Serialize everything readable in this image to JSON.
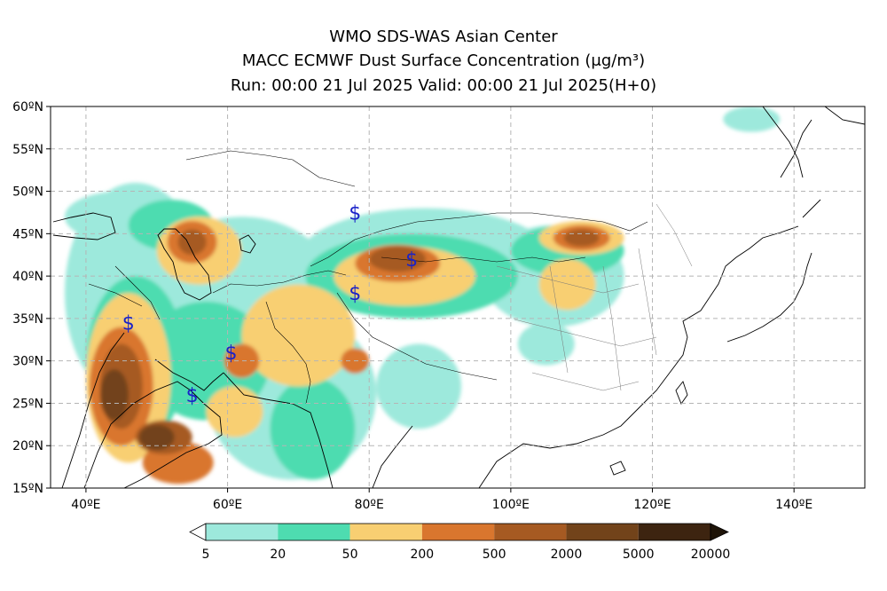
{
  "header": {
    "line1": "WMO SDS-WAS Asian Center",
    "line2": "MACC ECMWF Dust Surface Concentration (μg/m³)",
    "line3": "Run: 00:00 21 Jul 2025    Valid: 00:00 21 Jul 2025(H+0)"
  },
  "map": {
    "lon_range": [
      35,
      150
    ],
    "lat_range": [
      15,
      60
    ],
    "lon_ticks": [
      {
        "value": 40,
        "label": "40ºE"
      },
      {
        "value": 60,
        "label": "60ºE"
      },
      {
        "value": 80,
        "label": "80ºE"
      },
      {
        "value": 100,
        "label": "100ºE"
      },
      {
        "value": 120,
        "label": "120ºE"
      },
      {
        "value": 140,
        "label": "140ºE"
      }
    ],
    "lat_ticks": [
      {
        "value": 15,
        "label": "15ºN"
      },
      {
        "value": 20,
        "label": "20ºN"
      },
      {
        "value": 25,
        "label": "25ºN"
      },
      {
        "value": 30,
        "label": "30ºN"
      },
      {
        "value": 35,
        "label": "35ºN"
      },
      {
        "value": 40,
        "label": "40ºN"
      },
      {
        "value": 45,
        "label": "45ºN"
      },
      {
        "value": 50,
        "label": "50ºN"
      },
      {
        "value": 55,
        "label": "55ºN"
      },
      {
        "value": 60,
        "label": "60ºN"
      }
    ],
    "grid": true,
    "dust_storm_symbol": "$",
    "dust_storm_symbol_color": "#1a22c8",
    "dust_storm_sites": [
      {
        "lon": 46,
        "lat": 34.5
      },
      {
        "lon": 60.5,
        "lat": 31
      },
      {
        "lon": 55,
        "lat": 26
      },
      {
        "lon": 78,
        "lat": 47.5
      },
      {
        "lon": 86,
        "lat": 42
      },
      {
        "lon": 78,
        "lat": 38
      }
    ],
    "dust_fields": [
      {
        "level": 0,
        "lon": 47,
        "lat": 38,
        "rlon": 10,
        "rlat": 13
      },
      {
        "level": 0,
        "lon": 45,
        "lat": 47,
        "rlon": 8,
        "rlat": 3
      },
      {
        "level": 0,
        "lon": 62,
        "lat": 37,
        "rlon": 14,
        "rlat": 10
      },
      {
        "level": 0,
        "lon": 69,
        "lat": 26,
        "rlon": 12,
        "rlat": 10
      },
      {
        "level": 0,
        "lon": 88,
        "lat": 42,
        "rlon": 18,
        "rlat": 6
      },
      {
        "level": 0,
        "lon": 106,
        "lat": 40,
        "rlon": 10,
        "rlat": 6
      },
      {
        "level": 0,
        "lon": 87,
        "lat": 27,
        "rlon": 6,
        "rlat": 5
      },
      {
        "level": 0,
        "lon": 134,
        "lat": 58.5,
        "rlon": 4,
        "rlat": 1.5
      },
      {
        "level": 0,
        "lon": 105,
        "lat": 32,
        "rlon": 4,
        "rlat": 2.5
      },
      {
        "level": 1,
        "lon": 47,
        "lat": 30,
        "rlon": 7,
        "rlat": 10
      },
      {
        "level": 1,
        "lon": 57,
        "lat": 30,
        "rlon": 9,
        "rlat": 7
      },
      {
        "level": 1,
        "lon": 72,
        "lat": 22,
        "rlon": 6,
        "rlat": 6
      },
      {
        "level": 1,
        "lon": 86,
        "lat": 40,
        "rlon": 15,
        "rlat": 5
      },
      {
        "level": 1,
        "lon": 108,
        "lat": 43,
        "rlon": 8,
        "rlat": 3
      },
      {
        "level": 1,
        "lon": 52,
        "lat": 46,
        "rlon": 6,
        "rlat": 3
      },
      {
        "level": 2,
        "lon": 46,
        "lat": 28,
        "rlon": 6,
        "rlat": 10
      },
      {
        "level": 2,
        "lon": 56,
        "lat": 43,
        "rlon": 6,
        "rlat": 4
      },
      {
        "level": 2,
        "lon": 70,
        "lat": 33,
        "rlon": 8,
        "rlat": 6
      },
      {
        "level": 2,
        "lon": 85,
        "lat": 40,
        "rlon": 10,
        "rlat": 3.5
      },
      {
        "level": 2,
        "lon": 108,
        "lat": 39,
        "rlon": 4,
        "rlat": 3
      },
      {
        "level": 2,
        "lon": 110,
        "lat": 44.5,
        "rlon": 6,
        "rlat": 2
      },
      {
        "level": 2,
        "lon": 61,
        "lat": 24,
        "rlon": 4,
        "rlat": 3
      },
      {
        "level": 3,
        "lon": 45,
        "lat": 27,
        "rlon": 4.5,
        "rlat": 7
      },
      {
        "level": 3,
        "lon": 55,
        "lat": 44,
        "rlon": 3.5,
        "rlat": 2.5
      },
      {
        "level": 3,
        "lon": 84,
        "lat": 41.5,
        "rlon": 6,
        "rlat": 2.2
      },
      {
        "level": 3,
        "lon": 62,
        "lat": 30,
        "rlon": 2.5,
        "rlat": 2
      },
      {
        "level": 3,
        "lon": 110,
        "lat": 44.5,
        "rlon": 4,
        "rlat": 1.5
      },
      {
        "level": 3,
        "lon": 78,
        "lat": 30,
        "rlon": 2,
        "rlat": 1.5
      },
      {
        "level": 3,
        "lon": 53,
        "lat": 18,
        "rlon": 5,
        "rlat": 2.5
      },
      {
        "level": 4,
        "lon": 45,
        "lat": 27,
        "rlon": 3,
        "rlat": 5
      },
      {
        "level": 4,
        "lon": 84,
        "lat": 42,
        "rlon": 4,
        "rlat": 1.5
      },
      {
        "level": 4,
        "lon": 55,
        "lat": 44,
        "rlon": 2,
        "rlat": 1.5
      },
      {
        "level": 4,
        "lon": 51,
        "lat": 21,
        "rlon": 4,
        "rlat": 2
      },
      {
        "level": 4,
        "lon": 110,
        "lat": 44.5,
        "rlon": 2.5,
        "rlat": 1
      },
      {
        "level": 5,
        "lon": 44,
        "lat": 26,
        "rlon": 2,
        "rlat": 3
      },
      {
        "level": 5,
        "lon": 50,
        "lat": 21,
        "rlon": 2.5,
        "rlat": 1.5
      }
    ]
  },
  "colorbar": {
    "labels": [
      "5",
      "20",
      "50",
      "200",
      "500",
      "2000",
      "5000",
      "20000"
    ],
    "colors": [
      "#9de9dc",
      "#4edcb0",
      "#f8cf72",
      "#d9762e",
      "#a65a22",
      "#72431a",
      "#3d2410"
    ],
    "below_color": "#ffffff",
    "above_color": "#1e1408"
  }
}
